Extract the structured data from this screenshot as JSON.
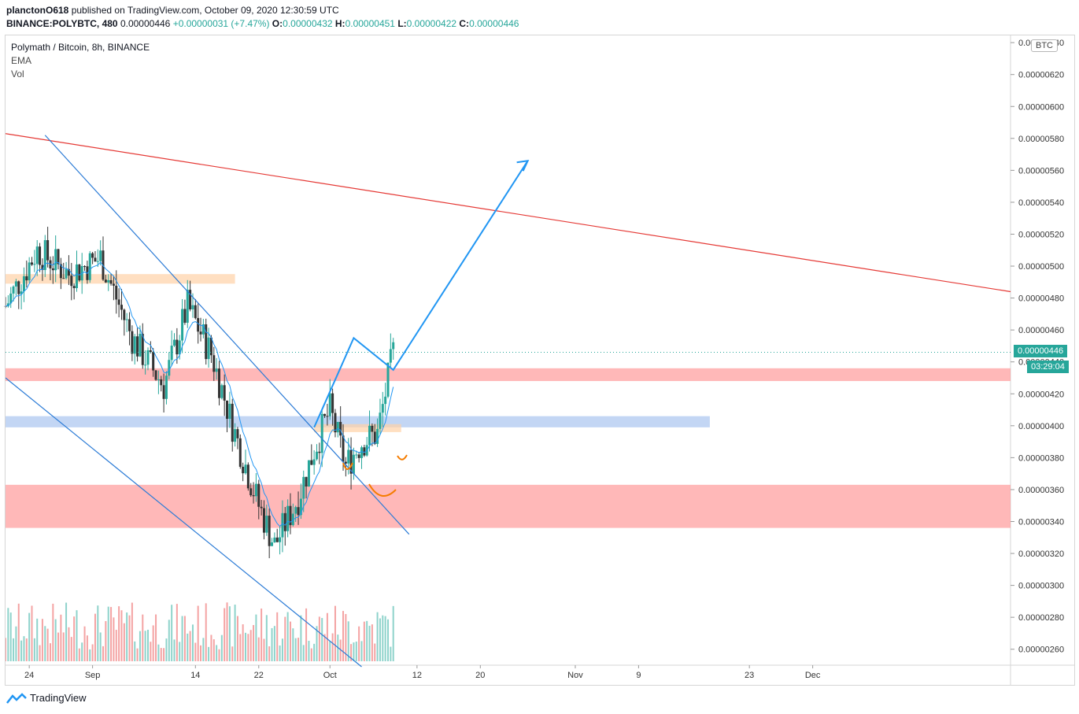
{
  "header": {
    "author": "planctonO618",
    "published": "published on TradingView.com, October 09, 2020 12:30:59 UTC",
    "symbol": "BINANCE:POLYBTC, 480",
    "price": "0.00000446",
    "change": "+0.00000031 (+7.47%)",
    "o_label": "O:",
    "o_val": "0.00000432",
    "h_label": "H:",
    "h_val": "0.00000451",
    "l_label": "L:",
    "l_val": "0.00000422",
    "c_label": "C:",
    "c_val": "0.00000446"
  },
  "legend": {
    "title": "Polymath / Bitcoin, 8h, BINANCE",
    "ema": "EMA",
    "vol": "Vol"
  },
  "currency_button": "BTC",
  "price_badge": "0.00000446",
  "countdown_badge": "03:29:04",
  "footer": {
    "brand": "TradingView"
  },
  "colors": {
    "up": "#26a69a",
    "down": "#333333",
    "ema": "#2196f3",
    "resistance_line": "#e53935",
    "support_zone": "#ff9a9a",
    "blue_zone": "#a9c4f0",
    "orange_zone": "#ffd2a6"
  },
  "chart_data": {
    "type": "candlestick",
    "title": "Polymath / Bitcoin, 8h, BINANCE",
    "ylim": [
      2.5e-06,
      6.45e-06
    ],
    "y_ticks": [
      "0.00000260",
      "0.00000280",
      "0.00000300",
      "0.00000320",
      "0.00000340",
      "0.00000360",
      "0.00000380",
      "0.00000400",
      "0.00000420",
      "0.00000440",
      "0.00000460",
      "0.00000480",
      "0.00000500",
      "0.00000520",
      "0.00000540",
      "0.00000560",
      "0.00000580",
      "0.00000600",
      "0.00000620",
      "0.00000640"
    ],
    "x_ticks": [
      "24",
      "Sep",
      "14",
      "22",
      "Oct",
      "12",
      "20",
      "Nov",
      "9",
      "23",
      "Dec"
    ],
    "x_tick_dates": [
      "2020-08-24",
      "2020-09-01",
      "2020-09-14",
      "2020-09-22",
      "2020-10-01",
      "2020-10-12",
      "2020-10-20",
      "2020-11-01",
      "2020-11-09",
      "2020-11-23",
      "2020-12-01"
    ],
    "series": [
      {
        "kind": "close",
        "x": [
          "2020-08-21",
          "2020-08-25",
          "2020-08-29",
          "2020-09-02",
          "2020-09-06",
          "2020-09-10",
          "2020-09-13",
          "2020-09-16",
          "2020-09-19",
          "2020-09-22",
          "2020-09-24",
          "2020-09-27",
          "2020-09-29",
          "2020-10-01",
          "2020-10-03",
          "2020-10-05",
          "2020-10-07",
          "2020-10-09"
        ],
        "values": [
          4.75e-06,
          5.1e-06,
          4.95e-06,
          5.05e-06,
          4.55e-06,
          4.25e-06,
          4.75e-06,
          4.45e-06,
          3.95e-06,
          3.5e-06,
          3.25e-06,
          3.55e-06,
          3.85e-06,
          4.1e-06,
          3.75e-06,
          3.9e-06,
          3.95e-06,
          4.46e-06
        ]
      }
    ],
    "annotations": [
      {
        "type": "trendline",
        "color": "#e53935",
        "from": [
          "2020-08-21",
          5.83e-06
        ],
        "to": [
          "2020-12-26",
          4.84e-06
        ]
      },
      {
        "type": "channel_top",
        "from": [
          "2020-08-26",
          5.82e-06
        ],
        "to": [
          "2020-10-11",
          3.32e-06
        ]
      },
      {
        "type": "channel_bottom",
        "from": [
          "2020-08-21",
          4.3e-06
        ],
        "to": [
          "2020-10-05",
          2.49e-06
        ]
      },
      {
        "type": "zone",
        "color": "#ff9a9a",
        "y": [
          3.36e-06,
          3.63e-06
        ]
      },
      {
        "type": "zone",
        "color": "#ff9a9a",
        "y": [
          4.28e-06,
          4.36e-06
        ]
      },
      {
        "type": "zone",
        "color": "#a9c4f0",
        "y": [
          3.99e-06,
          4.06e-06
        ]
      },
      {
        "type": "zone",
        "color": "#ffd2a6",
        "y": [
          4.89e-06,
          4.95e-06
        ]
      },
      {
        "type": "zone",
        "color": "#ffd2a6",
        "y": [
          3.96e-06,
          4.01e-06
        ]
      },
      {
        "type": "projection",
        "points": [
          [
            "2020-09-29",
            3.99e-06
          ],
          [
            "2020-10-04",
            4.55e-06
          ],
          [
            "2020-10-09",
            4.35e-06
          ],
          [
            "2020-10-26",
            5.66e-06
          ]
        ]
      }
    ]
  }
}
